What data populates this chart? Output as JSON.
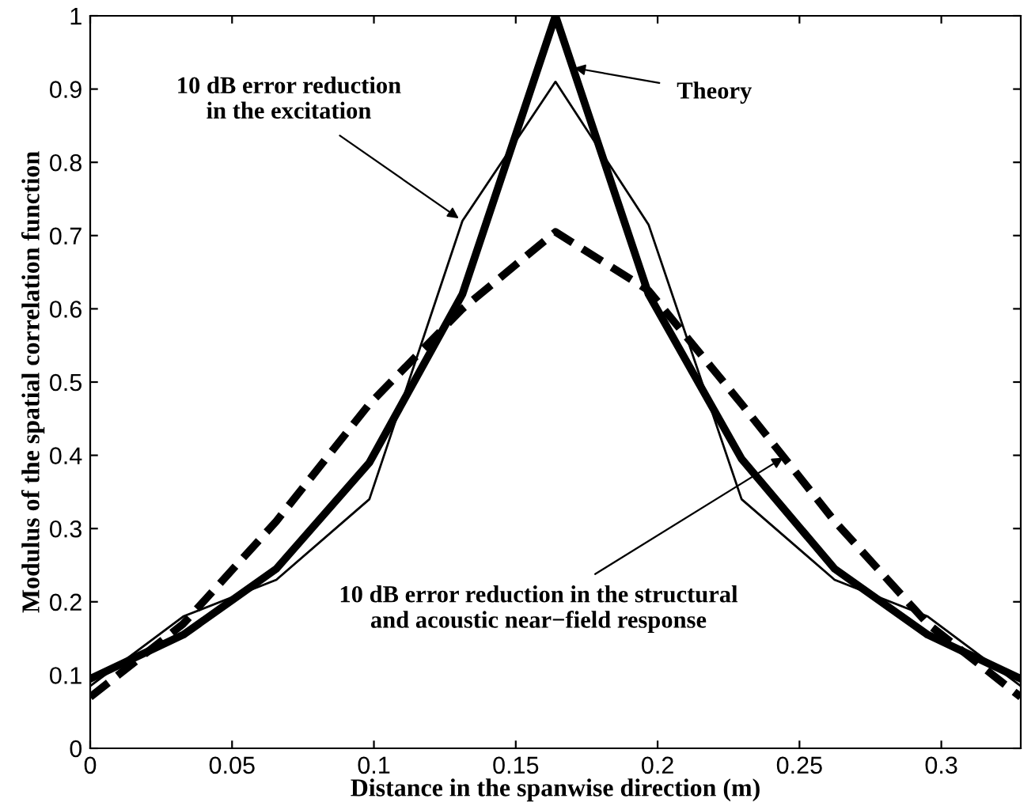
{
  "chart_data": {
    "type": "line",
    "xlabel": "Distance in the spanwise direction (m)",
    "ylabel": "Modulus of the spatial correlation function",
    "x": [
      0,
      0.0328,
      0.0656,
      0.0984,
      0.1312,
      0.164,
      0.1968,
      0.2296,
      0.2624,
      0.2952,
      0.328
    ],
    "xlim": [
      0,
      0.328
    ],
    "ylim": [
      0,
      1
    ],
    "xticks": [
      0,
      0.05,
      0.1,
      0.15,
      0.2,
      0.25,
      0.3
    ],
    "yticks": [
      0,
      0.1,
      0.2,
      0.3,
      0.4,
      0.5,
      0.6,
      0.7,
      0.8,
      0.9,
      1
    ],
    "grid": false,
    "marker": "none",
    "series": [
      {
        "color": "#000000",
        "line_style": "solid",
        "values": [
          0.095,
          0.155,
          0.245,
          0.39,
          0.62,
          1.0,
          0.62,
          0.395,
          0.245,
          0.155,
          0.095
        ]
      },
      {
        "color": "#000000",
        "line_style": "solid",
        "values": [
          0.085,
          0.18,
          0.23,
          0.34,
          0.72,
          0.91,
          0.715,
          0.34,
          0.23,
          0.18,
          0.085
        ]
      },
      {
        "color": "#000000",
        "line_style": "dashed",
        "values": [
          0.07,
          0.17,
          0.31,
          0.47,
          0.6,
          0.705,
          0.625,
          0.47,
          0.31,
          0.17,
          0.07
        ]
      }
    ],
    "annotations": [
      {
        "text": "10 dB error reduction\nin the excitation",
        "x": 0.1312,
        "y": 0.72
      },
      {
        "text": "Theory",
        "x": 0.169,
        "y": 0.93
      },
      {
        "text": "10 dB error reduction in the structural\nand acoustic near−field response",
        "x": 0.2456,
        "y": 0.4
      }
    ]
  }
}
